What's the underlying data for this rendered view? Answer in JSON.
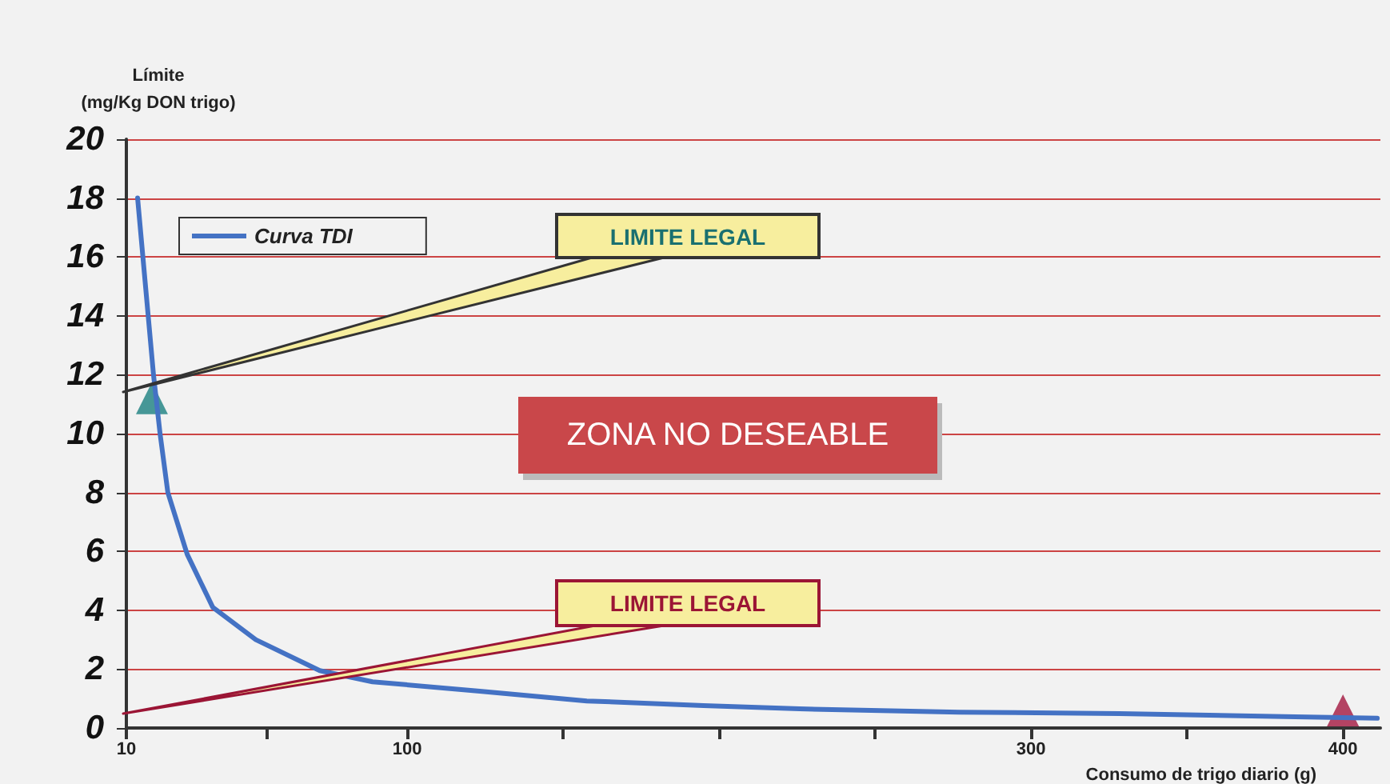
{
  "chart_data": {
    "type": "line",
    "xlabel": "Consumo de trigo diario (g)",
    "ylabel": "Límite\n(mg/Kg DON trigo)",
    "xlim": [
      10,
      412
    ],
    "xticks": [
      10,
      {
        "value": 55,
        "label": null
      },
      100,
      {
        "value": 150,
        "label": null
      },
      {
        "value": 200,
        "label": null
      },
      {
        "value": 250,
        "label": null
      },
      300,
      {
        "value": 350,
        "label": null
      },
      400
    ],
    "ylim": [
      0,
      20
    ],
    "yticks": [
      0,
      2,
      4,
      6,
      8,
      10,
      12,
      14,
      16,
      18,
      20
    ],
    "grid": "y",
    "legend": "top left",
    "series": [
      {
        "name": "Curva TDI",
        "color": "#4472c4",
        "marker": "none",
        "x": [
          13.6,
          18.7,
          20.8,
          23.3,
          29.5,
          37.7,
          51.5,
          72,
          88.9,
          123.3,
          157.6,
          195,
          225.8,
          277,
          328.3,
          384.7,
          411
        ],
        "values": [
          18.0,
          12.0,
          10.0,
          8.0,
          5.9,
          4.1,
          3.0,
          1.95,
          1.57,
          1.25,
          0.92,
          0.76,
          0.65,
          0.54,
          0.49,
          0.38,
          0.33
        ]
      },
      {
        "type": "scatter",
        "marker": "triangle",
        "colors": [
          "#1a7f7f",
          "#a3173f"
        ],
        "x": [
          18.2,
          400
        ],
        "values": [
          11.2,
          0.6
        ]
      }
    ],
    "annotations": [
      "LIMITE LEGAL",
      "LIMITE LEGAL",
      "ZONA NO DESEABLE"
    ]
  }
}
